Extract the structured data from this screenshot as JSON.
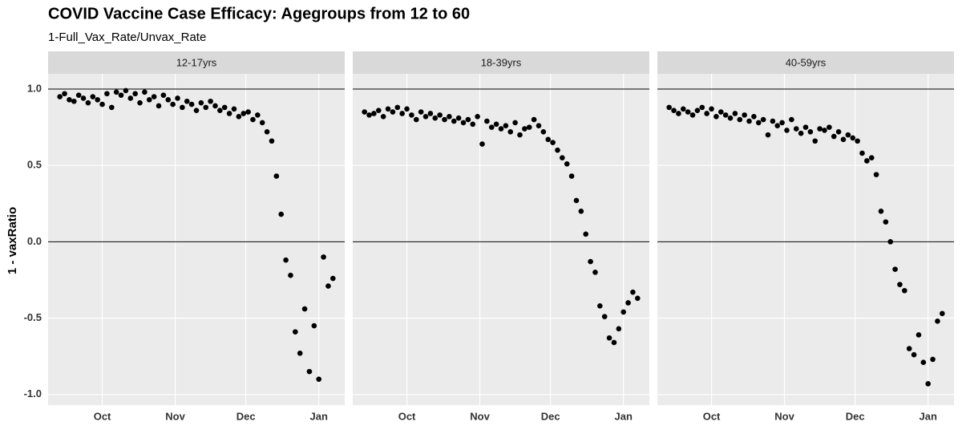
{
  "chart_data": {
    "type": "scatter",
    "title": "COVID Vaccine Case Efficacy: Agegroups from 12 to 60",
    "subtitle": "1-Full_Vax_Rate/Unvax_Rate",
    "y_label": "1 - vaxRatio",
    "x": [
      12,
      14,
      16,
      18,
      20,
      22,
      24,
      26,
      28,
      30,
      32,
      34,
      36,
      38,
      40,
      42,
      44,
      46,
      48,
      50,
      52,
      54,
      56,
      58,
      60,
      62,
      64,
      66,
      68,
      70,
      72,
      74,
      76,
      78,
      80,
      82,
      84,
      86,
      88,
      90,
      92,
      94,
      96,
      98,
      100,
      102,
      104,
      106,
      108,
      110,
      112,
      114,
      116,
      118,
      120,
      122,
      124,
      126,
      128
    ],
    "xlim": [
      7,
      133
    ],
    "xticks": [
      {
        "value": 30,
        "label": "Oct"
      },
      {
        "value": 61,
        "label": "Nov"
      },
      {
        "value": 91,
        "label": "Dec"
      },
      {
        "value": 122,
        "label": "Jan"
      }
    ],
    "ylim": [
      -1.07,
      1.1
    ],
    "yticks": [
      {
        "value": 1,
        "label": "1.0"
      },
      0.5,
      {
        "value": 0,
        "label": "0.0"
      },
      -0.5,
      {
        "value": -1,
        "label": "-1.0"
      }
    ],
    "reference_lines": [
      1,
      0
    ],
    "grid": true,
    "series": [
      {
        "name": "12-17yrs",
        "color": "#000000",
        "values": [
          0.95,
          0.97,
          0.93,
          0.92,
          0.96,
          0.94,
          0.91,
          0.95,
          0.93,
          0.9,
          0.97,
          0.88,
          0.98,
          0.96,
          0.99,
          0.94,
          0.97,
          0.91,
          0.98,
          0.93,
          0.95,
          0.89,
          0.96,
          0.93,
          0.9,
          0.94,
          0.88,
          0.92,
          0.9,
          0.86,
          0.91,
          0.88,
          0.92,
          0.89,
          0.86,
          0.88,
          0.84,
          0.87,
          0.82,
          0.84,
          0.85,
          0.8,
          0.83,
          0.78,
          0.72,
          0.66,
          0.43,
          0.18,
          -0.12,
          -0.22,
          -0.59,
          -0.73,
          -0.44,
          -0.85,
          -0.55,
          -0.9,
          -0.1,
          -0.29,
          -0.24
        ]
      },
      {
        "name": "18-39yrs",
        "color": "#000000",
        "values": [
          0.85,
          0.83,
          0.84,
          0.86,
          0.82,
          0.87,
          0.85,
          0.88,
          0.84,
          0.87,
          0.83,
          0.8,
          0.85,
          0.82,
          0.84,
          0.81,
          0.83,
          0.8,
          0.82,
          0.79,
          0.81,
          0.78,
          0.8,
          0.77,
          0.82,
          0.64,
          0.79,
          0.75,
          0.77,
          0.74,
          0.76,
          0.72,
          0.78,
          0.7,
          0.74,
          0.75,
          0.8,
          0.76,
          0.72,
          0.67,
          0.65,
          0.6,
          0.55,
          0.51,
          0.43,
          0.27,
          0.2,
          0.05,
          -0.13,
          -0.2,
          -0.42,
          -0.49,
          -0.63,
          -0.66,
          -0.57,
          -0.46,
          -0.4,
          -0.33,
          -0.37
        ]
      },
      {
        "name": "40-59yrs",
        "color": "#000000",
        "values": [
          0.88,
          0.86,
          0.84,
          0.87,
          0.85,
          0.83,
          0.86,
          0.88,
          0.84,
          0.87,
          0.82,
          0.85,
          0.83,
          0.81,
          0.84,
          0.8,
          0.83,
          0.79,
          0.82,
          0.78,
          0.8,
          0.7,
          0.79,
          0.76,
          0.78,
          0.73,
          0.8,
          0.74,
          0.71,
          0.75,
          0.72,
          0.66,
          0.74,
          0.73,
          0.75,
          0.69,
          0.72,
          0.67,
          0.7,
          0.68,
          0.66,
          0.58,
          0.53,
          0.55,
          0.44,
          0.2,
          0.13,
          0.0,
          -0.18,
          -0.28,
          -0.32,
          -0.7,
          -0.74,
          -0.61,
          -0.79,
          -0.93,
          -0.77,
          -0.52,
          -0.47
        ]
      }
    ]
  }
}
